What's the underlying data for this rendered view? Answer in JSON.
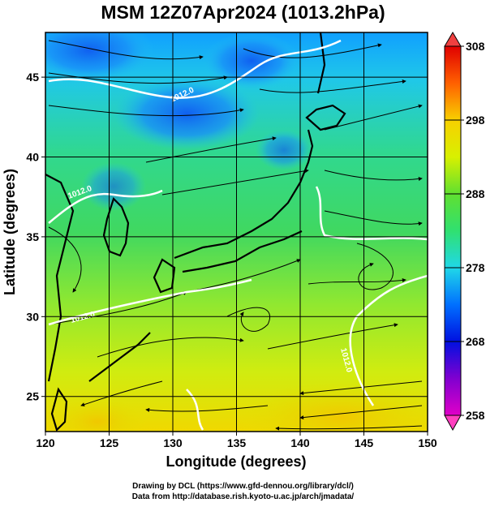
{
  "title": "MSM 12Z07Apr2024 (1013.2hPa)",
  "axes": {
    "xlabel": "Longitude (degrees)",
    "ylabel": "Latitude  (degrees)",
    "x_ticks": [
      "120",
      "125",
      "130",
      "135",
      "140",
      "145",
      "150"
    ],
    "y_ticks": [
      "25",
      "30",
      "35",
      "40",
      "45"
    ],
    "x_range": [
      120,
      150
    ],
    "y_range": [
      22.8,
      47.8
    ]
  },
  "colorbar": {
    "ticks": [
      "258",
      "268",
      "278",
      "288",
      "298",
      "308"
    ],
    "range": [
      258,
      308
    ],
    "colors": [
      "#e000c8",
      "#7000d0",
      "#0010e0",
      "#0090ff",
      "#20e0e0",
      "#20d860",
      "#a0f000",
      "#f0e000",
      "#ff8000",
      "#e00000"
    ]
  },
  "contours": {
    "labels": [
      "1012.0",
      "1012.0",
      "1012.0",
      "1012.0"
    ],
    "color": "#ffffff"
  },
  "credits": {
    "line1": "Drawing by DCL (https://www.gfd-dennou.org/library/dcl/)",
    "line2": "Data from http://database.rish.kyoto-u.ac.jp/arch/jmadata/"
  }
}
